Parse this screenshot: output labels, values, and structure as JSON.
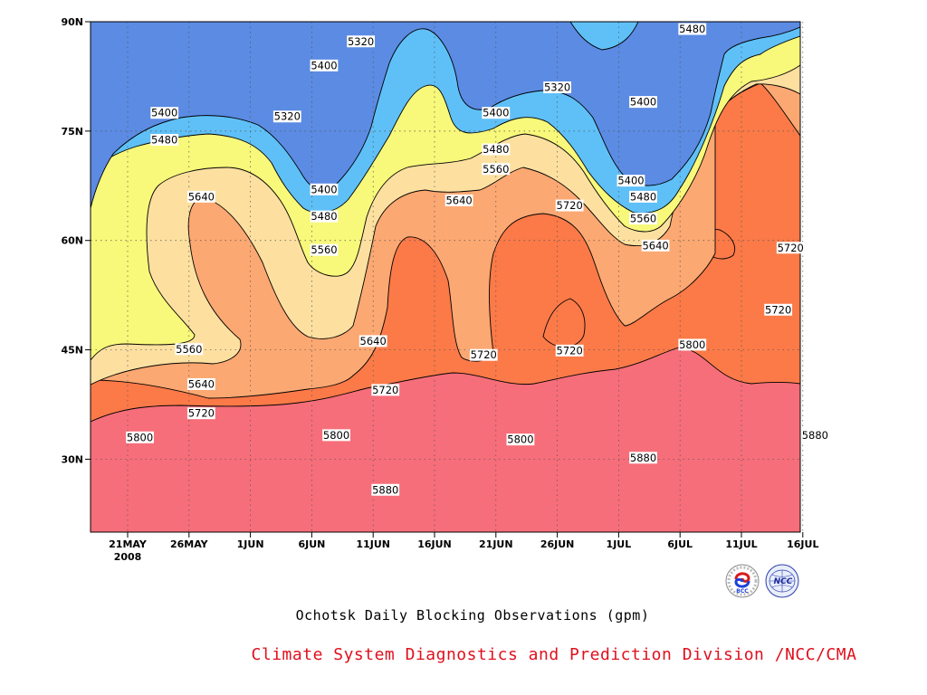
{
  "chart_data": {
    "type": "contour",
    "title": "Ochotsk Daily Blocking Observations (gpm)",
    "credit": "Climate System Diagnostics and Prediction Division /NCC/CMA",
    "x_ticks": [
      "21MAY",
      "26MAY",
      "1JUN",
      "6JUN",
      "11JUN",
      "16JUN",
      "21JUN",
      "26JUN",
      "1JUL",
      "6JUL",
      "11JUL",
      "16JUL"
    ],
    "x_year_label": "2008",
    "y_ticks": [
      "30N",
      "45N",
      "60N",
      "75N",
      "90N"
    ],
    "y_tick_values": [
      30,
      45,
      60,
      75,
      90
    ],
    "ylim": [
      20,
      90
    ],
    "grid": true,
    "contour_levels": [
      5320,
      5400,
      5480,
      5560,
      5640,
      5720,
      5800,
      5880
    ],
    "level_colors": {
      "below_5320": "#4a47e6",
      "5320_5400": "#5b8be3",
      "5400_5480": "#5fc0f7",
      "5480_5560": "#f8f87a",
      "5560_5640": "#fde0a0",
      "5640_5720": "#fca872",
      "5720_5800": "#fb7a48",
      "5800_5880": "#f66e7a",
      "above_5880": "#f03a4e"
    },
    "contour_labels": [
      {
        "text": "5320",
        "date": "9JUN",
        "lat": 87.3
      },
      {
        "text": "5320",
        "date": "3JUN",
        "lat": 77.0
      },
      {
        "text": "5320",
        "date": "25JUN",
        "lat": 81.0
      },
      {
        "text": "5400",
        "date": "6JUN",
        "lat": 84.0
      },
      {
        "text": "5400",
        "date": "24MAY",
        "lat": 77.5
      },
      {
        "text": "5400",
        "date": "20JUN",
        "lat": 77.5
      },
      {
        "text": "5400",
        "date": "2JUL",
        "lat": 79.0
      },
      {
        "text": "5400",
        "date": "1JUL",
        "lat": 68.2
      },
      {
        "text": "5400",
        "date": "6JUN",
        "lat": 67.0
      },
      {
        "text": "5480",
        "date": "6JUL",
        "lat": 89.0
      },
      {
        "text": "5480",
        "date": "24MAY",
        "lat": 73.8
      },
      {
        "text": "5480",
        "date": "20JUN",
        "lat": 72.5
      },
      {
        "text": "5480",
        "date": "2JUL",
        "lat": 66.0
      },
      {
        "text": "5480",
        "date": "6JUN",
        "lat": 63.3
      },
      {
        "text": "5560",
        "date": "20JUN",
        "lat": 69.8
      },
      {
        "text": "5560",
        "date": "2JUL",
        "lat": 63.0
      },
      {
        "text": "5560",
        "date": "6JUN",
        "lat": 58.7
      },
      {
        "text": "5560",
        "date": "26MAY",
        "lat": 45.1
      },
      {
        "text": "5640",
        "date": "27MAY",
        "lat": 66.0
      },
      {
        "text": "5640",
        "date": "17JUN",
        "lat": 65.5
      },
      {
        "text": "5640",
        "date": "3JUL",
        "lat": 59.3
      },
      {
        "text": "5640",
        "date": "10JUN",
        "lat": 46.2
      },
      {
        "text": "5640",
        "date": "27MAY",
        "lat": 40.3
      },
      {
        "text": "5720",
        "date": "26JUN",
        "lat": 64.8
      },
      {
        "text": "5720",
        "date": "14JUL",
        "lat": 59.0
      },
      {
        "text": "5720",
        "date": "13JUL",
        "lat": 50.5
      },
      {
        "text": "5720",
        "date": "19JUN",
        "lat": 44.3
      },
      {
        "text": "5720",
        "date": "26JUN",
        "lat": 44.9
      },
      {
        "text": "5720",
        "date": "11JUN",
        "lat": 39.5
      },
      {
        "text": "5720",
        "date": "27MAY",
        "lat": 36.3
      },
      {
        "text": "5800",
        "date": "22MAY",
        "lat": 33.0
      },
      {
        "text": "5800",
        "date": "7JUN",
        "lat": 33.3
      },
      {
        "text": "5800",
        "date": "22JUN",
        "lat": 32.7
      },
      {
        "text": "5800",
        "date": "6JUL",
        "lat": 45.7
      },
      {
        "text": "5880",
        "date": "11JUN",
        "lat": 25.8
      },
      {
        "text": "5880",
        "date": "2JUL",
        "lat": 30.2
      },
      {
        "text": "5880",
        "date": "16JUL",
        "lat": 33.3
      }
    ]
  },
  "logos": {
    "bcc": "BCC",
    "ncc": "NCC"
  }
}
